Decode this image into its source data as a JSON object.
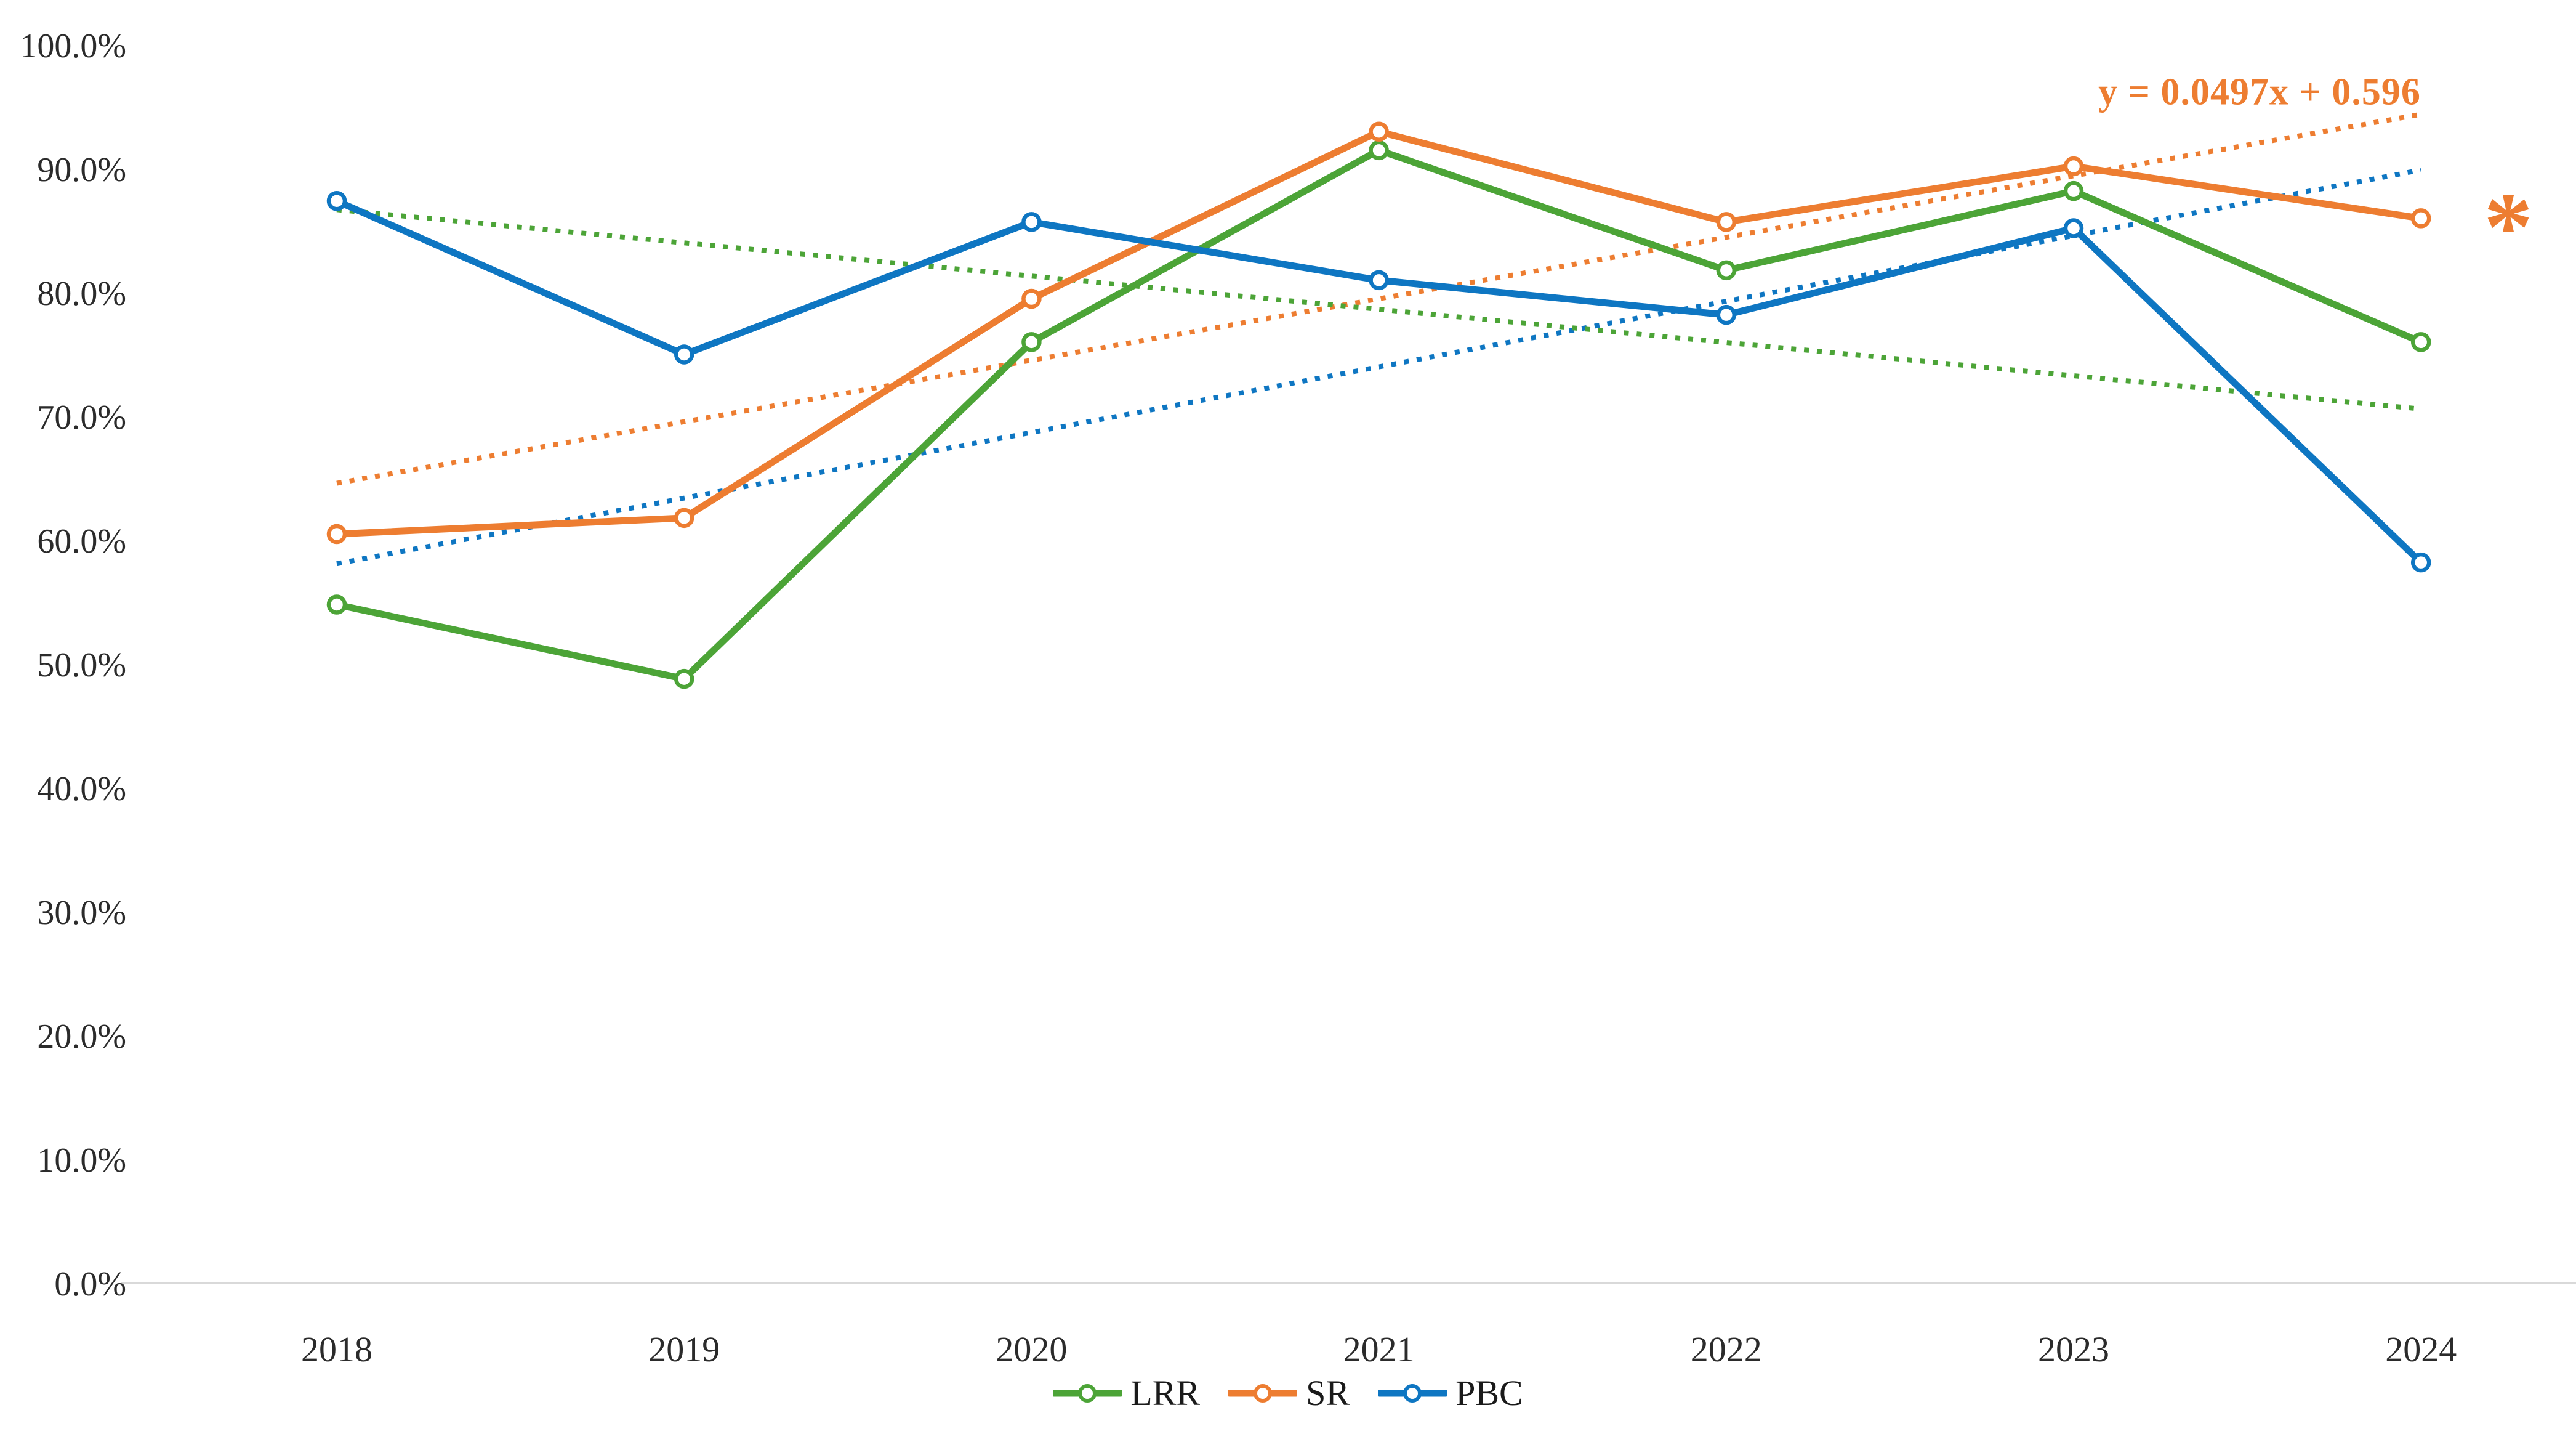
{
  "chart_data": {
    "type": "line",
    "title": "",
    "categories": [
      "2018",
      "2019",
      "2020",
      "2021",
      "2022",
      "2023",
      "2024"
    ],
    "y_axis": {
      "min": 0,
      "max": 100,
      "step": 10,
      "unit": "%",
      "tick_labels": [
        "0.0%",
        "10.0%",
        "20.0%",
        "30.0%",
        "40.0%",
        "50.0%",
        "60.0%",
        "70.0%",
        "80.0%",
        "90.0%",
        "100.0%"
      ]
    },
    "x_axis": {
      "tick_labels": [
        "2018",
        "2019",
        "2020",
        "2021",
        "2022",
        "2023",
        "2024"
      ]
    },
    "grid": "off",
    "series": [
      {
        "name": "LRR",
        "color": "#4CA437",
        "marker": "open-circle",
        "values_pct": [
          54.8,
          48.8,
          76.0,
          91.5,
          81.8,
          88.2,
          76.0
        ]
      },
      {
        "name": "SR",
        "color": "#ED7D31",
        "marker": "open-circle",
        "values_pct": [
          60.5,
          61.8,
          79.5,
          93.0,
          85.7,
          90.2,
          86.0
        ]
      },
      {
        "name": "PBC",
        "color": "#0E76C2",
        "marker": "open-circle",
        "values_pct": [
          87.4,
          75.0,
          85.7,
          81.0,
          78.2,
          85.2,
          58.2
        ]
      }
    ],
    "trendlines": [
      {
        "for": "SR",
        "color": "#ED7D31",
        "style": "dotted",
        "start_pct": 64.6,
        "end_pct": 94.4,
        "equation": "y = 0.0497x + 0.596"
      },
      {
        "for": "LRR",
        "color": "#0E76C2",
        "style": "dotted",
        "start_pct": 58.1,
        "end_pct": 89.9,
        "equation": ""
      },
      {
        "for": "PBC",
        "color": "#4CA437",
        "style": "dotted",
        "start_pct": 86.7,
        "end_pct": 70.6,
        "equation": ""
      }
    ],
    "annotations": [
      {
        "id": "equation",
        "text": "y = 0.0497x + 0.596",
        "color": "#ED7D31"
      },
      {
        "id": "asterisk",
        "text": "*",
        "color": "#ED7D31"
      }
    ],
    "legend": {
      "position": "bottom-center",
      "entries": [
        "LRR",
        "SR",
        "PBC"
      ]
    },
    "colors": {
      "axis_line": "#D9D9D9",
      "tick_text": "#2b2b2b"
    }
  }
}
